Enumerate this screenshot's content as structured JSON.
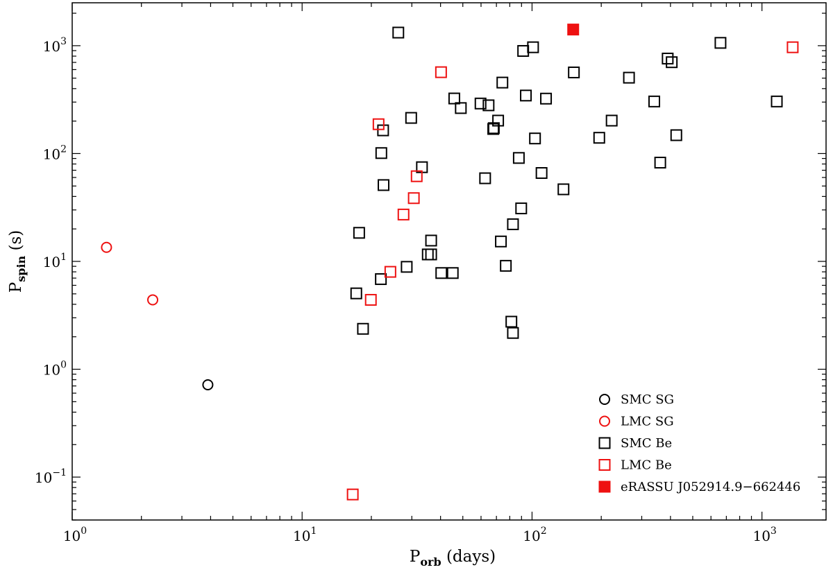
{
  "chart_data": {
    "type": "scatter",
    "title": "",
    "x_scale": "log",
    "y_scale": "log",
    "xlim": [
      1,
      1900
    ],
    "ylim": [
      0.04,
      2500
    ],
    "xlabel": {
      "main": "P",
      "sub": "orb",
      "rest": " (days)"
    },
    "ylabel": {
      "main": "P",
      "sub": "spin",
      "rest": " (s)"
    },
    "x_ticks": [
      {
        "value": 1,
        "base": "10",
        "exp": "0"
      },
      {
        "value": 10,
        "base": "10",
        "exp": "1"
      },
      {
        "value": 100,
        "base": "10",
        "exp": "2"
      },
      {
        "value": 1000,
        "base": "10",
        "exp": "3"
      }
    ],
    "y_ticks": [
      {
        "value": 0.1,
        "base": "10",
        "exp": "−1"
      },
      {
        "value": 1,
        "base": "10",
        "exp": "0"
      },
      {
        "value": 10,
        "base": "10",
        "exp": "1"
      },
      {
        "value": 100,
        "base": "10",
        "exp": "2"
      },
      {
        "value": 1000,
        "base": "10",
        "exp": "3"
      }
    ],
    "grid": false,
    "legend_position": "bottom-right",
    "series": [
      {
        "name": "SMC SG",
        "marker": "circle",
        "color": "#000000",
        "filled": false,
        "points": [
          [
            3.89,
            0.717
          ]
        ]
      },
      {
        "name": "LMC SG",
        "marker": "circle",
        "color": "#ee1111",
        "filled": false,
        "points": [
          [
            1.41,
            13.5
          ],
          [
            2.24,
            4.4
          ]
        ]
      },
      {
        "name": "SMC Be",
        "marker": "square",
        "color": "#000000",
        "filled": false,
        "points": [
          [
            26.2,
            1323
          ],
          [
            17.2,
            5.05
          ],
          [
            18.4,
            2.37
          ],
          [
            17.7,
            18.4
          ],
          [
            22.0,
            6.85
          ],
          [
            22.1,
            101
          ],
          [
            22.5,
            164
          ],
          [
            22.6,
            51
          ],
          [
            28.5,
            8.9
          ],
          [
            29.8,
            214
          ],
          [
            33.2,
            74.7
          ],
          [
            35.2,
            11.6
          ],
          [
            36.4,
            15.6
          ],
          [
            36.4,
            11.6
          ],
          [
            40.3,
            7.8
          ],
          [
            45.2,
            7.8
          ],
          [
            45.9,
            324
          ],
          [
            49.0,
            264
          ],
          [
            59.7,
            291
          ],
          [
            62.5,
            59
          ],
          [
            64.7,
            280
          ],
          [
            67.8,
            169
          ],
          [
            68.2,
            172
          ],
          [
            71.2,
            202
          ],
          [
            73.2,
            15.3
          ],
          [
            74.3,
            455
          ],
          [
            76.9,
            9.1
          ],
          [
            81.3,
            2.76
          ],
          [
            82.6,
            2.17
          ],
          [
            82.6,
            22.1
          ],
          [
            87.6,
            91
          ],
          [
            89.7,
            31
          ],
          [
            91.5,
            894
          ],
          [
            94.0,
            345
          ],
          [
            101.0,
            967
          ],
          [
            103.0,
            138
          ],
          [
            110.0,
            66
          ],
          [
            115.0,
            323
          ],
          [
            137.0,
            46.6
          ],
          [
            152.0,
            565
          ],
          [
            196.0,
            140
          ],
          [
            222.0,
            202
          ],
          [
            264.0,
            505
          ],
          [
            340.0,
            304
          ],
          [
            361.0,
            82.4
          ],
          [
            389.0,
            760
          ],
          [
            405.0,
            703
          ],
          [
            424.0,
            148
          ],
          [
            660.0,
            1062
          ],
          [
            1160.0,
            304
          ]
        ]
      },
      {
        "name": "LMC Be",
        "marker": "square",
        "color": "#ee1111",
        "filled": false,
        "points": [
          [
            16.6,
            0.069
          ],
          [
            19.9,
            4.4
          ],
          [
            21.5,
            187
          ],
          [
            24.2,
            8.0
          ],
          [
            27.6,
            27.2
          ],
          [
            30.6,
            38.6
          ],
          [
            31.5,
            61.6
          ],
          [
            40.2,
            568
          ],
          [
            1360.0,
            967
          ]
        ]
      },
      {
        "name": "eRASSU J052914.9−662446",
        "marker": "square",
        "color": "#ee1111",
        "filled": true,
        "points": [
          [
            151.0,
            1412
          ]
        ]
      }
    ]
  }
}
